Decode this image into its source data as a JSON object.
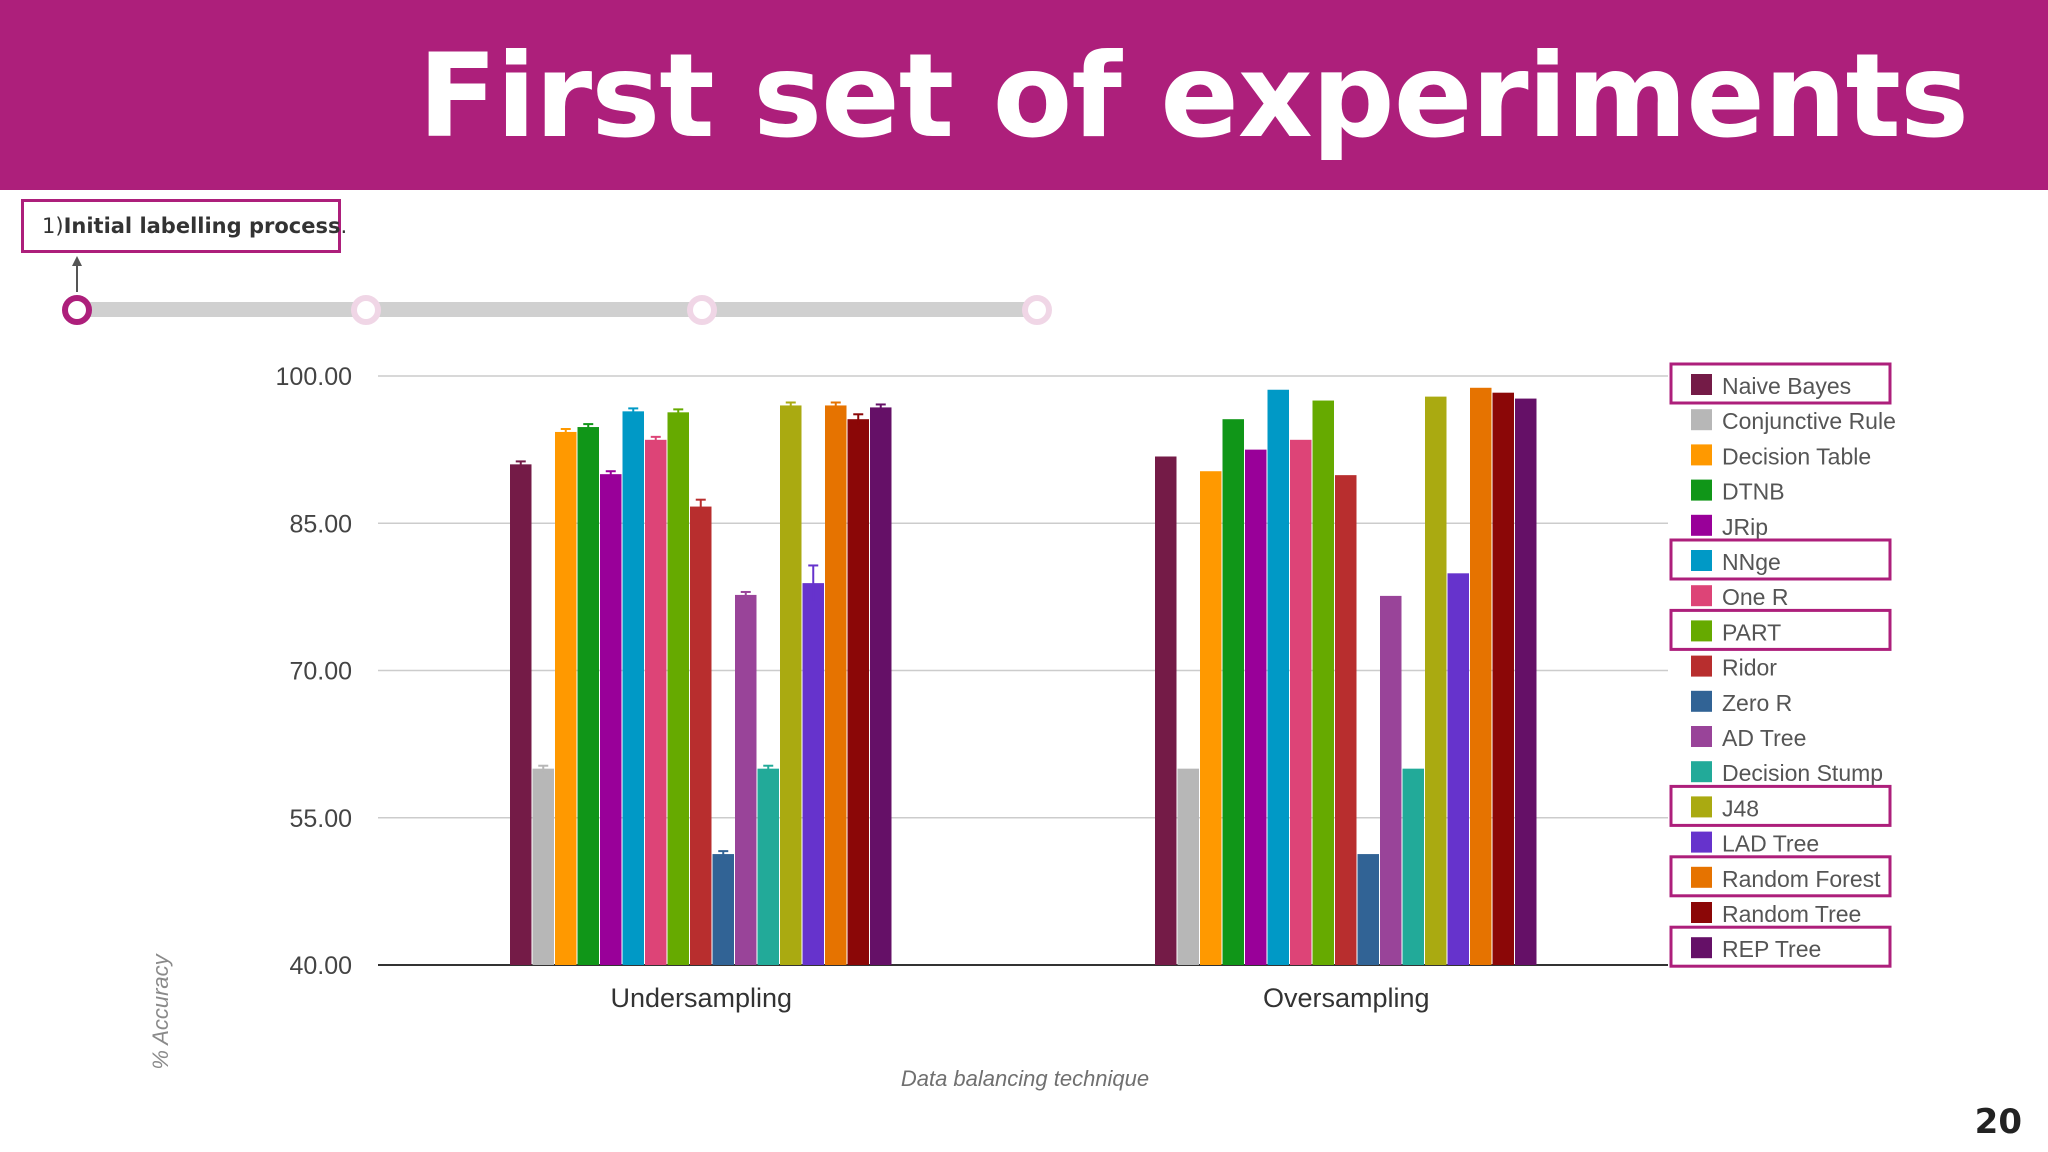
{
  "slide": {
    "title": "First set of experiments",
    "step_label_prefix": "1) ",
    "step_label_bold": "Initial labelling process",
    "step_label_suffix": ".",
    "page_number": "20"
  },
  "colors": {
    "accent": "#ad1f7b",
    "step_track": "#d0d0d0",
    "step_inactive_ring": "#f0d6e6"
  },
  "stepper": {
    "steps": 4,
    "active_index": 0
  },
  "chart_data": {
    "type": "bar",
    "xlabel": "Data balancing technique",
    "ylabel": "% Accuracy",
    "ylim": [
      40,
      100
    ],
    "yticks": [
      "100.00",
      "85.00",
      "70.00",
      "55.00",
      "40.00"
    ],
    "ytick_values": [
      100,
      85,
      70,
      55,
      40
    ],
    "grid": true,
    "legend_position": "right",
    "categories": [
      "Undersampling",
      "Oversampling"
    ],
    "series": [
      {
        "name": "Naive Bayes",
        "color": "#741b47",
        "values": [
          91,
          91.8
        ],
        "error": [
          0.3,
          0
        ],
        "highlight": true
      },
      {
        "name": "Conjunctive Rule",
        "color": "#b7b7b7",
        "values": [
          60,
          60
        ],
        "error": [
          0.3,
          0
        ],
        "highlight": false
      },
      {
        "name": "Decision Table",
        "color": "#ff9900",
        "values": [
          94.3,
          90.3
        ],
        "error": [
          0.3,
          0
        ],
        "highlight": false
      },
      {
        "name": "DTNB",
        "color": "#109618",
        "values": [
          94.8,
          95.6
        ],
        "error": [
          0.3,
          0
        ],
        "highlight": false
      },
      {
        "name": "JRip",
        "color": "#990099",
        "values": [
          90,
          92.5
        ],
        "error": [
          0.3,
          0
        ],
        "highlight": false
      },
      {
        "name": "NNge",
        "color": "#0099c6",
        "values": [
          96.4,
          98.6
        ],
        "error": [
          0.3,
          0
        ],
        "highlight": true
      },
      {
        "name": "One R",
        "color": "#dd4477",
        "values": [
          93.5,
          93.5
        ],
        "error": [
          0.3,
          0
        ],
        "highlight": false
      },
      {
        "name": "PART",
        "color": "#66aa00",
        "values": [
          96.3,
          97.5
        ],
        "error": [
          0.3,
          0
        ],
        "highlight": true
      },
      {
        "name": "Ridor",
        "color": "#b82e2e",
        "values": [
          86.7,
          89.9
        ],
        "error": [
          0.7,
          0
        ],
        "highlight": false
      },
      {
        "name": "Zero R",
        "color": "#316395",
        "values": [
          51.3,
          51.3
        ],
        "error": [
          0.3,
          0
        ],
        "highlight": false
      },
      {
        "name": "AD Tree",
        "color": "#994499",
        "values": [
          77.7,
          77.6
        ],
        "error": [
          0.3,
          0
        ],
        "highlight": false
      },
      {
        "name": "Decision Stump",
        "color": "#22aa99",
        "values": [
          60,
          60
        ],
        "error": [
          0.3,
          0
        ],
        "highlight": false
      },
      {
        "name": "J48",
        "color": "#aaaa11",
        "values": [
          97,
          97.9
        ],
        "error": [
          0.3,
          0
        ],
        "highlight": true
      },
      {
        "name": "LAD Tree",
        "color": "#6633cc",
        "values": [
          78.9,
          79.9
        ],
        "error": [
          1.8,
          0
        ],
        "highlight": false
      },
      {
        "name": "Random Forest",
        "color": "#e67300",
        "values": [
          97,
          98.8
        ],
        "error": [
          0.3,
          0
        ],
        "highlight": true
      },
      {
        "name": "Random Tree",
        "color": "#8b0707",
        "values": [
          95.6,
          98.3
        ],
        "error": [
          0.5,
          0
        ],
        "highlight": false
      },
      {
        "name": "REP Tree",
        "color": "#651067",
        "values": [
          96.8,
          97.7
        ],
        "error": [
          0.3,
          0
        ],
        "highlight": true
      }
    ]
  }
}
